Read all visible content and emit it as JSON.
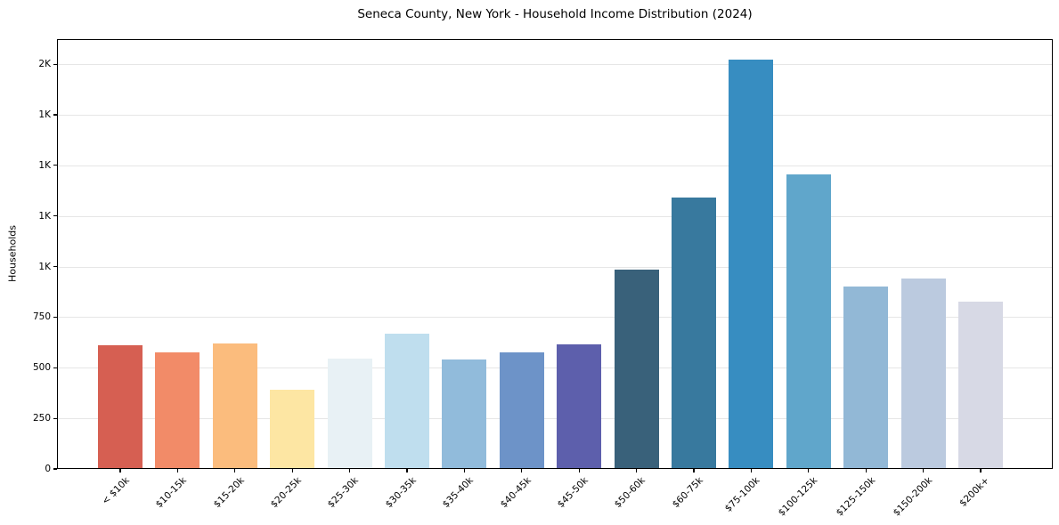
{
  "chart_data": {
    "type": "bar",
    "title": "Seneca County, New York - Household Income Distribution (2024)",
    "xlabel": "",
    "ylabel": "Households",
    "categories": [
      "< $10k",
      "$10-15k",
      "$15-20k",
      "$20-25k",
      "$25-30k",
      "$30-35k",
      "$35-40k",
      "$40-45k",
      "$45-50k",
      "$50-60k",
      "$60-75k",
      "$75-100k",
      "$100-125k",
      "$125-150k",
      "$150-200k",
      "$200k+"
    ],
    "values": [
      612,
      576,
      621,
      391,
      547,
      669,
      541,
      574,
      615,
      985,
      1341,
      2023,
      1455,
      903,
      941,
      828
    ],
    "bar_colors": [
      "#d65f52",
      "#f28b68",
      "#fbbc7d",
      "#fde6a3",
      "#e8f1f5",
      "#bfdeee",
      "#91bbdb",
      "#6d93c8",
      "#5d5fac",
      "#39617a",
      "#38799e",
      "#378dc1",
      "#60a6cb",
      "#92b8d6",
      "#bbcadf",
      "#d7d9e5"
    ],
    "ylim": [
      0,
      2124
    ],
    "yticks": [
      {
        "value": 0,
        "label": "0"
      },
      {
        "value": 250,
        "label": "250"
      },
      {
        "value": 500,
        "label": "500"
      },
      {
        "value": 750,
        "label": "750"
      },
      {
        "value": 1000,
        "label": "1K"
      },
      {
        "value": 1250,
        "label": "1K"
      },
      {
        "value": 1500,
        "label": "1K"
      },
      {
        "value": 1750,
        "label": "1K"
      },
      {
        "value": 2000,
        "label": "2K"
      }
    ],
    "grid": "horizontal",
    "legend": null,
    "colors": {
      "background": "#ffffff",
      "grid": "#e6e6e6",
      "spine": "#000000",
      "text": "#000000"
    }
  }
}
